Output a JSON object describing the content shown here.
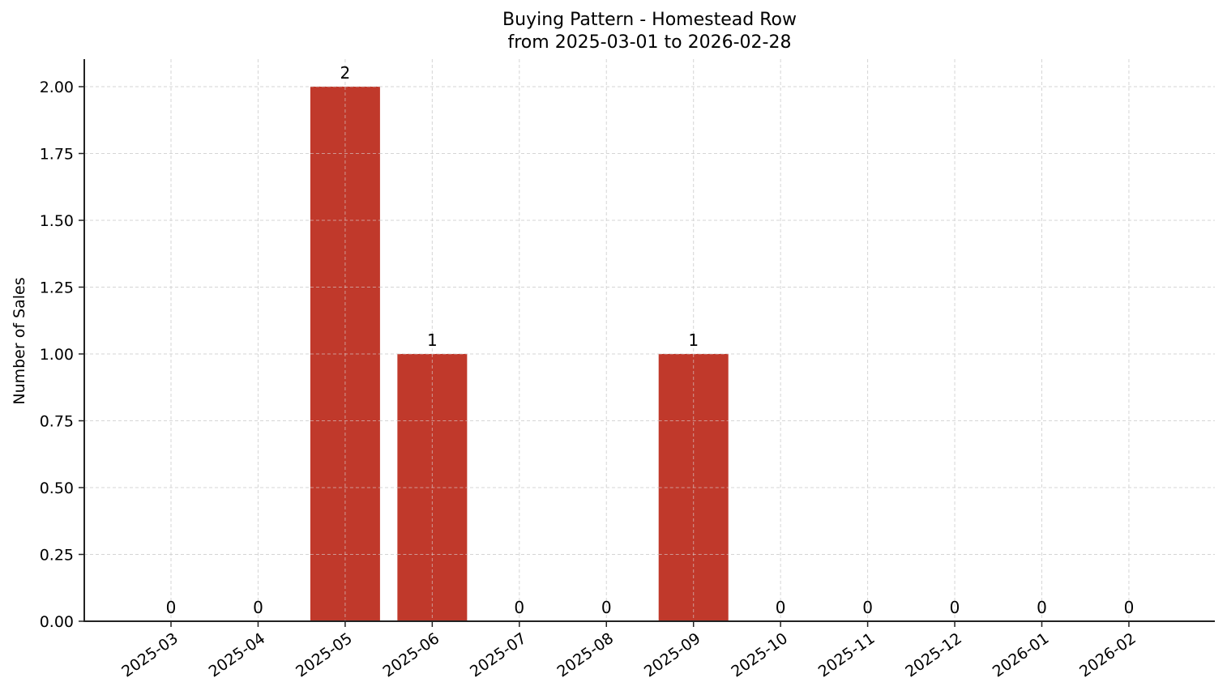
{
  "chart_data": {
    "type": "bar",
    "title": "Buying Pattern - Homestead Row",
    "subtitle": "from 2025-03-01 to 2026-02-28",
    "xlabel": "",
    "ylabel": "Number of Sales",
    "categories": [
      "2025-03",
      "2025-04",
      "2025-05",
      "2025-06",
      "2025-07",
      "2025-08",
      "2025-09",
      "2025-10",
      "2025-11",
      "2025-12",
      "2026-01",
      "2026-02"
    ],
    "values": [
      0,
      0,
      2,
      1,
      0,
      0,
      1,
      0,
      0,
      0,
      0,
      0
    ],
    "data_labels": [
      "0",
      "0",
      "2",
      "1",
      "0",
      "0",
      "1",
      "0",
      "0",
      "0",
      "0",
      "0"
    ],
    "ylim": [
      0,
      2.1
    ],
    "yticks": [
      "0.00",
      "0.25",
      "0.50",
      "0.75",
      "1.00",
      "1.25",
      "1.50",
      "1.75",
      "2.00"
    ],
    "grid": true,
    "legend": null,
    "bar_color": "#c0392b"
  }
}
